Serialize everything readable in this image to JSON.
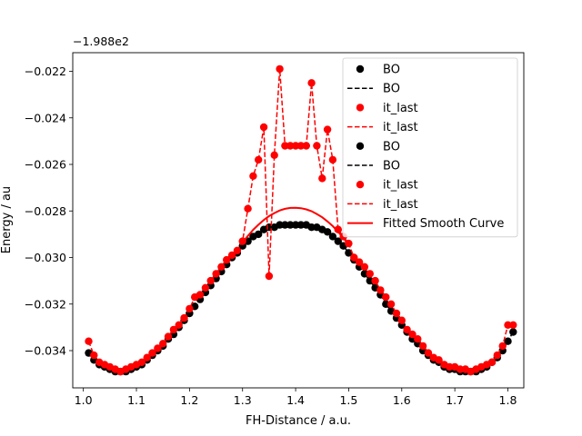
{
  "chart_data": {
    "type": "line",
    "xlabel": "FH-Distance / a.u.",
    "ylabel": "Energy / au",
    "offset_text": "−1.988e2",
    "xlim": [
      0.98,
      1.83
    ],
    "ylim": [
      -0.0356,
      -0.0212
    ],
    "x_ticks": [
      1.0,
      1.1,
      1.2,
      1.3,
      1.4,
      1.5,
      1.6,
      1.7,
      1.8
    ],
    "x_tick_labels": [
      "1.0",
      "1.1",
      "1.2",
      "1.3",
      "1.4",
      "1.5",
      "1.6",
      "1.7",
      "1.8"
    ],
    "y_ticks": [
      -0.034,
      -0.032,
      -0.03,
      -0.028,
      -0.026,
      -0.024,
      -0.022
    ],
    "y_tick_labels": [
      "−0.034",
      "−0.032",
      "−0.030",
      "−0.028",
      "−0.026",
      "−0.024",
      "−0.022"
    ],
    "legend_position": "top-right",
    "legend": [
      {
        "label": "BO",
        "kind": "marker",
        "color": "#000000"
      },
      {
        "label": "BO",
        "kind": "dashed",
        "color": "#000000"
      },
      {
        "label": "it_last",
        "kind": "marker",
        "color": "#ff0000"
      },
      {
        "label": "it_last",
        "kind": "dashed",
        "color": "#ff0000"
      },
      {
        "label": "BO",
        "kind": "marker",
        "color": "#000000"
      },
      {
        "label": "BO",
        "kind": "dashed",
        "color": "#000000"
      },
      {
        "label": "it_last",
        "kind": "marker",
        "color": "#ff0000"
      },
      {
        "label": "it_last",
        "kind": "dashed",
        "color": "#ff0000"
      },
      {
        "label": "Fitted Smooth Curve",
        "kind": "solid",
        "color": "#ff0000"
      }
    ],
    "series": [
      {
        "name": "BO",
        "color": "#000000",
        "points": [
          [
            1.01,
            -0.0341
          ],
          [
            1.02,
            -0.0344
          ],
          [
            1.03,
            -0.0346
          ],
          [
            1.04,
            -0.0347
          ],
          [
            1.05,
            -0.0348
          ],
          [
            1.06,
            -0.0349
          ],
          [
            1.07,
            -0.0349
          ],
          [
            1.08,
            -0.0349
          ],
          [
            1.09,
            -0.0348
          ],
          [
            1.1,
            -0.0347
          ],
          [
            1.11,
            -0.0346
          ],
          [
            1.12,
            -0.0344
          ],
          [
            1.13,
            -0.0342
          ],
          [
            1.14,
            -0.034
          ],
          [
            1.15,
            -0.0338
          ],
          [
            1.16,
            -0.0335
          ],
          [
            1.17,
            -0.0333
          ],
          [
            1.18,
            -0.033
          ],
          [
            1.19,
            -0.0327
          ],
          [
            1.2,
            -0.0324
          ],
          [
            1.21,
            -0.0321
          ],
          [
            1.22,
            -0.0318
          ],
          [
            1.23,
            -0.0315
          ],
          [
            1.24,
            -0.0312
          ],
          [
            1.25,
            -0.0309
          ],
          [
            1.26,
            -0.0306
          ],
          [
            1.27,
            -0.0303
          ],
          [
            1.28,
            -0.03
          ],
          [
            1.29,
            -0.0298
          ],
          [
            1.3,
            -0.0295
          ],
          [
            1.31,
            -0.0293
          ],
          [
            1.32,
            -0.0291
          ],
          [
            1.33,
            -0.029
          ],
          [
            1.34,
            -0.0288
          ],
          [
            1.35,
            -0.0287
          ],
          [
            1.36,
            -0.0287
          ],
          [
            1.37,
            -0.0286
          ],
          [
            1.38,
            -0.0286
          ],
          [
            1.39,
            -0.0286
          ],
          [
            1.4,
            -0.0286
          ],
          [
            1.41,
            -0.0286
          ],
          [
            1.42,
            -0.0286
          ],
          [
            1.43,
            -0.0287
          ],
          [
            1.44,
            -0.0287
          ],
          [
            1.45,
            -0.0288
          ],
          [
            1.46,
            -0.0289
          ],
          [
            1.47,
            -0.0291
          ],
          [
            1.48,
            -0.0293
          ],
          [
            1.49,
            -0.0295
          ],
          [
            1.5,
            -0.0298
          ],
          [
            1.51,
            -0.0301
          ],
          [
            1.52,
            -0.0304
          ],
          [
            1.53,
            -0.0307
          ],
          [
            1.54,
            -0.031
          ],
          [
            1.55,
            -0.0313
          ],
          [
            1.56,
            -0.0316
          ],
          [
            1.57,
            -0.032
          ],
          [
            1.58,
            -0.0323
          ],
          [
            1.59,
            -0.0326
          ],
          [
            1.6,
            -0.0329
          ],
          [
            1.61,
            -0.0332
          ],
          [
            1.62,
            -0.0335
          ],
          [
            1.63,
            -0.0337
          ],
          [
            1.64,
            -0.034
          ],
          [
            1.65,
            -0.0342
          ],
          [
            1.66,
            -0.0344
          ],
          [
            1.67,
            -0.0345
          ],
          [
            1.68,
            -0.0347
          ],
          [
            1.69,
            -0.0348
          ],
          [
            1.7,
            -0.0348
          ],
          [
            1.71,
            -0.0349
          ],
          [
            1.72,
            -0.0349
          ],
          [
            1.73,
            -0.0349
          ],
          [
            1.74,
            -0.0349
          ],
          [
            1.75,
            -0.0348
          ],
          [
            1.76,
            -0.0347
          ],
          [
            1.77,
            -0.0345
          ],
          [
            1.78,
            -0.0343
          ],
          [
            1.79,
            -0.034
          ],
          [
            1.8,
            -0.0336
          ],
          [
            1.81,
            -0.0332
          ]
        ]
      },
      {
        "name": "it_last",
        "color": "#ff0000",
        "points": [
          [
            1.01,
            -0.0336
          ],
          [
            1.02,
            -0.0342
          ],
          [
            1.03,
            -0.0345
          ],
          [
            1.04,
            -0.0346
          ],
          [
            1.05,
            -0.0347
          ],
          [
            1.06,
            -0.0348
          ],
          [
            1.07,
            -0.0349
          ],
          [
            1.08,
            -0.0348
          ],
          [
            1.09,
            -0.0347
          ],
          [
            1.1,
            -0.0346
          ],
          [
            1.11,
            -0.0345
          ],
          [
            1.12,
            -0.0343
          ],
          [
            1.13,
            -0.0341
          ],
          [
            1.14,
            -0.0339
          ],
          [
            1.15,
            -0.0337
          ],
          [
            1.16,
            -0.0334
          ],
          [
            1.17,
            -0.0331
          ],
          [
            1.18,
            -0.0329
          ],
          [
            1.19,
            -0.0326
          ],
          [
            1.2,
            -0.0322
          ],
          [
            1.21,
            -0.0317
          ],
          [
            1.22,
            -0.0316
          ],
          [
            1.23,
            -0.0313
          ],
          [
            1.24,
            -0.031
          ],
          [
            1.25,
            -0.0307
          ],
          [
            1.26,
            -0.0304
          ],
          [
            1.27,
            -0.0301
          ],
          [
            1.28,
            -0.0299
          ],
          [
            1.29,
            -0.0297
          ],
          [
            1.3,
            -0.0293
          ],
          [
            1.31,
            -0.0279
          ],
          [
            1.32,
            -0.0265
          ],
          [
            1.33,
            -0.0258
          ],
          [
            1.34,
            -0.0244
          ],
          [
            1.35,
            -0.0308
          ],
          [
            1.36,
            -0.0256
          ],
          [
            1.37,
            -0.0219
          ],
          [
            1.38,
            -0.0252
          ],
          [
            1.39,
            -0.0252
          ],
          [
            1.4,
            -0.0252
          ],
          [
            1.41,
            -0.0252
          ],
          [
            1.42,
            -0.0252
          ],
          [
            1.43,
            -0.0225
          ],
          [
            1.44,
            -0.0252
          ],
          [
            1.45,
            -0.0266
          ],
          [
            1.46,
            -0.0245
          ],
          [
            1.47,
            -0.0258
          ],
          [
            1.48,
            -0.0288
          ],
          [
            1.49,
            -0.0291
          ],
          [
            1.5,
            -0.0294
          ],
          [
            1.51,
            -0.03
          ],
          [
            1.52,
            -0.0302
          ],
          [
            1.53,
            -0.0304
          ],
          [
            1.54,
            -0.0307
          ],
          [
            1.55,
            -0.031
          ],
          [
            1.56,
            -0.0314
          ],
          [
            1.57,
            -0.0317
          ],
          [
            1.58,
            -0.032
          ],
          [
            1.59,
            -0.0324
          ],
          [
            1.6,
            -0.0327
          ],
          [
            1.61,
            -0.0331
          ],
          [
            1.62,
            -0.0333
          ],
          [
            1.63,
            -0.0335
          ],
          [
            1.64,
            -0.0338
          ],
          [
            1.65,
            -0.0341
          ],
          [
            1.66,
            -0.0343
          ],
          [
            1.67,
            -0.0344
          ],
          [
            1.68,
            -0.0346
          ],
          [
            1.69,
            -0.0347
          ],
          [
            1.7,
            -0.0347
          ],
          [
            1.71,
            -0.0348
          ],
          [
            1.72,
            -0.0348
          ],
          [
            1.73,
            -0.0349
          ],
          [
            1.74,
            -0.0348
          ],
          [
            1.75,
            -0.0347
          ],
          [
            1.76,
            -0.0346
          ],
          [
            1.77,
            -0.0345
          ],
          [
            1.78,
            -0.0342
          ],
          [
            1.79,
            -0.0338
          ],
          [
            1.8,
            -0.0329
          ],
          [
            1.81,
            -0.0329
          ]
        ]
      },
      {
        "name": "Fitted Smooth Curve",
        "color": "#ff0000",
        "kind": "curve",
        "points": [
          [
            1.3,
            -0.02935
          ],
          [
            1.31,
            -0.02907
          ],
          [
            1.32,
            -0.02881
          ],
          [
            1.33,
            -0.02859
          ],
          [
            1.34,
            -0.02839
          ],
          [
            1.35,
            -0.02822
          ],
          [
            1.36,
            -0.02809
          ],
          [
            1.37,
            -0.02798
          ],
          [
            1.38,
            -0.02791
          ],
          [
            1.39,
            -0.02787
          ],
          [
            1.4,
            -0.02786
          ],
          [
            1.41,
            -0.02788
          ],
          [
            1.42,
            -0.02793
          ],
          [
            1.43,
            -0.02801
          ],
          [
            1.44,
            -0.02813
          ],
          [
            1.45,
            -0.02827
          ],
          [
            1.46,
            -0.02845
          ],
          [
            1.47,
            -0.02865
          ],
          [
            1.48,
            -0.02889
          ],
          [
            1.49,
            -0.02916
          ],
          [
            1.5,
            -0.02946
          ]
        ]
      }
    ]
  }
}
